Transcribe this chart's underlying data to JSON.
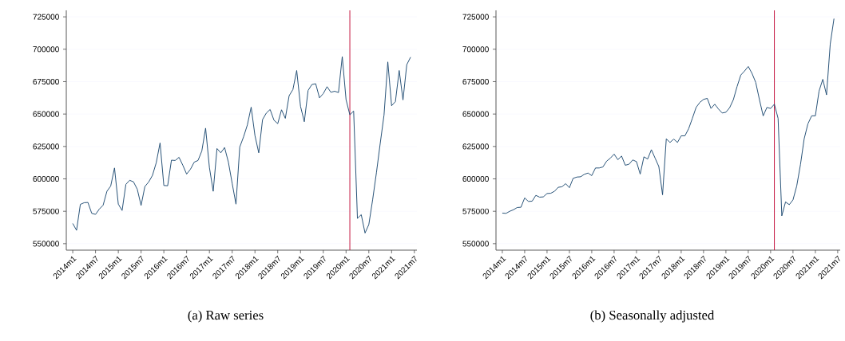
{
  "chart_data": [
    {
      "type": "line",
      "title": "(a) Raw series",
      "x": [
        "2014-01",
        "2014-02",
        "2014-03",
        "2014-04",
        "2014-05",
        "2014-06",
        "2014-07",
        "2014-08",
        "2014-09",
        "2014-10",
        "2014-11",
        "2014-12",
        "2015-01",
        "2015-02",
        "2015-03",
        "2015-04",
        "2015-05",
        "2015-06",
        "2015-07",
        "2015-08",
        "2015-09",
        "2015-10",
        "2015-11",
        "2015-12",
        "2016-01",
        "2016-02",
        "2016-03",
        "2016-04",
        "2016-05",
        "2016-06",
        "2016-07",
        "2016-08",
        "2016-09",
        "2016-10",
        "2016-11",
        "2016-12",
        "2017-01",
        "2017-02",
        "2017-03",
        "2017-04",
        "2017-05",
        "2017-06",
        "2017-07",
        "2017-08",
        "2017-09",
        "2017-10",
        "2017-11",
        "2017-12",
        "2018-01",
        "2018-02",
        "2018-03",
        "2018-04",
        "2018-05",
        "2018-06",
        "2018-07",
        "2018-08",
        "2018-09",
        "2018-10",
        "2018-11",
        "2018-12",
        "2019-01",
        "2019-02",
        "2019-03",
        "2019-04",
        "2019-05",
        "2019-06",
        "2019-07",
        "2019-08",
        "2019-09",
        "2019-10",
        "2019-11",
        "2019-12",
        "2020-01",
        "2020-02",
        "2020-03",
        "2020-04",
        "2020-05",
        "2020-06",
        "2020-07",
        "2020-08",
        "2020-09",
        "2020-10",
        "2020-11",
        "2020-12",
        "2021-01",
        "2021-02",
        "2021-03",
        "2021-04",
        "2021-05",
        "2021-06"
      ],
      "values": [
        565600,
        560300,
        580300,
        581600,
        581800,
        573400,
        572600,
        576700,
        579700,
        590400,
        594500,
        608400,
        580500,
        575600,
        595800,
        598900,
        597700,
        592000,
        579500,
        594100,
        597600,
        602700,
        612500,
        627700,
        594900,
        594700,
        614400,
        614200,
        616600,
        610500,
        603700,
        607400,
        612900,
        614200,
        621500,
        639100,
        608800,
        590400,
        623400,
        620100,
        624200,
        612900,
        596500,
        580500,
        624600,
        632400,
        641600,
        655300,
        633400,
        620100,
        645700,
        650800,
        653500,
        645300,
        642600,
        653300,
        646700,
        664100,
        668900,
        683600,
        656000,
        644100,
        668200,
        672800,
        673400,
        662500,
        665800,
        671100,
        666800,
        667600,
        666600,
        694300,
        661100,
        649400,
        652300,
        569500,
        572400,
        558200,
        564800,
        583800,
        604700,
        627300,
        649200,
        690200,
        656400,
        659600,
        683600,
        660900,
        688100,
        693900
      ],
      "color": "#1a476f",
      "xlim": [
        "2013-11-10",
        "2021-07-21"
      ],
      "xticks": [
        {
          "value": "2014-01",
          "label": "2014m1"
        },
        {
          "value": "2014-07",
          "label": "2014m7"
        },
        {
          "value": "2015-01",
          "label": "2015m1"
        },
        {
          "value": "2015-07",
          "label": "2015m7"
        },
        {
          "value": "2016-01",
          "label": "2016m1"
        },
        {
          "value": "2016-07",
          "label": "2016m7"
        },
        {
          "value": "2017-01",
          "label": "2017m1"
        },
        {
          "value": "2017-07",
          "label": "2017m7"
        },
        {
          "value": "2018-01",
          "label": "2018m1"
        },
        {
          "value": "2018-07",
          "label": "2018m7"
        },
        {
          "value": "2019-01",
          "label": "2019m1"
        },
        {
          "value": "2019-07",
          "label": "2019m7"
        },
        {
          "value": "2020-01",
          "label": "2020m1"
        },
        {
          "value": "2020-07",
          "label": "2020m7"
        },
        {
          "value": "2021-01",
          "label": "2021m1"
        },
        {
          "value": "2021-07",
          "label": "2021m7"
        }
      ],
      "ylim": [
        545000,
        730000
      ],
      "yticks": [
        550000,
        575000,
        600000,
        625000,
        650000,
        675000,
        700000,
        725000
      ],
      "grid": "y",
      "ref_lines": [
        {
          "axis": "x",
          "value": "2020-02",
          "color": "#c10534"
        }
      ]
    },
    {
      "type": "line",
      "title": "(b) Seasonally adjusted",
      "x": [
        "2014-01",
        "2014-02",
        "2014-03",
        "2014-04",
        "2014-05",
        "2014-06",
        "2014-07",
        "2014-08",
        "2014-09",
        "2014-10",
        "2014-11",
        "2014-12",
        "2015-01",
        "2015-02",
        "2015-03",
        "2015-04",
        "2015-05",
        "2015-06",
        "2015-07",
        "2015-08",
        "2015-09",
        "2015-10",
        "2015-11",
        "2015-12",
        "2016-01",
        "2016-02",
        "2016-03",
        "2016-04",
        "2016-05",
        "2016-06",
        "2016-07",
        "2016-08",
        "2016-09",
        "2016-10",
        "2016-11",
        "2016-12",
        "2017-01",
        "2017-02",
        "2017-03",
        "2017-04",
        "2017-05",
        "2017-06",
        "2017-07",
        "2017-08",
        "2017-09",
        "2017-10",
        "2017-11",
        "2017-12",
        "2018-01",
        "2018-02",
        "2018-03",
        "2018-04",
        "2018-05",
        "2018-06",
        "2018-07",
        "2018-08",
        "2018-09",
        "2018-10",
        "2018-11",
        "2018-12",
        "2019-01",
        "2019-02",
        "2019-03",
        "2019-04",
        "2019-05",
        "2019-06",
        "2019-07",
        "2019-08",
        "2019-09",
        "2019-10",
        "2019-11",
        "2019-12",
        "2020-01",
        "2020-02",
        "2020-03",
        "2020-04",
        "2020-05",
        "2020-06",
        "2020-07",
        "2020-08",
        "2020-09",
        "2020-10",
        "2020-11",
        "2020-12",
        "2021-01",
        "2021-02",
        "2021-03",
        "2021-04",
        "2021-05",
        "2021-06"
      ],
      "values": [
        573600,
        573400,
        575000,
        576200,
        577900,
        578100,
        585300,
        582600,
        582800,
        587300,
        585900,
        586100,
        588700,
        588900,
        590400,
        593500,
        593900,
        596300,
        593200,
        600400,
        601400,
        601600,
        603500,
        604500,
        602500,
        608400,
        608400,
        609200,
        613700,
        616000,
        619100,
        614800,
        617600,
        610500,
        611300,
        614600,
        613300,
        603700,
        617000,
        615300,
        622500,
        616000,
        609500,
        587700,
        630900,
        628100,
        630700,
        628100,
        633200,
        633200,
        638700,
        646700,
        655100,
        659000,
        661300,
        662100,
        654300,
        657600,
        653900,
        650800,
        651400,
        654900,
        661100,
        671300,
        680100,
        683200,
        686700,
        681400,
        674400,
        661100,
        648600,
        655100,
        654300,
        657600,
        646700,
        571500,
        582200,
        580100,
        583800,
        594500,
        610900,
        630900,
        642400,
        648600,
        648600,
        667800,
        676800,
        664800,
        704100,
        723600
      ],
      "color": "#1a476f",
      "xlim": [
        "2013-11-10",
        "2021-07-21"
      ],
      "xticks": [
        {
          "value": "2014-01",
          "label": "2014m1"
        },
        {
          "value": "2014-07",
          "label": "2014m7"
        },
        {
          "value": "2015-01",
          "label": "2015m1"
        },
        {
          "value": "2015-07",
          "label": "2015m7"
        },
        {
          "value": "2016-01",
          "label": "2016m1"
        },
        {
          "value": "2016-07",
          "label": "2016m7"
        },
        {
          "value": "2017-01",
          "label": "2017m1"
        },
        {
          "value": "2017-07",
          "label": "2017m7"
        },
        {
          "value": "2018-01",
          "label": "2018m1"
        },
        {
          "value": "2018-07",
          "label": "2018m7"
        },
        {
          "value": "2019-01",
          "label": "2019m1"
        },
        {
          "value": "2019-07",
          "label": "2019m7"
        },
        {
          "value": "2020-01",
          "label": "2020m1"
        },
        {
          "value": "2020-07",
          "label": "2020m7"
        },
        {
          "value": "2021-01",
          "label": "2021m1"
        },
        {
          "value": "2021-07",
          "label": "2021m7"
        }
      ],
      "ylim": [
        545000,
        730000
      ],
      "yticks": [
        550000,
        575000,
        600000,
        625000,
        650000,
        675000,
        700000,
        725000
      ],
      "grid": "y",
      "ref_lines": [
        {
          "axis": "x",
          "value": "2020-02",
          "color": "#c10534"
        }
      ]
    }
  ]
}
